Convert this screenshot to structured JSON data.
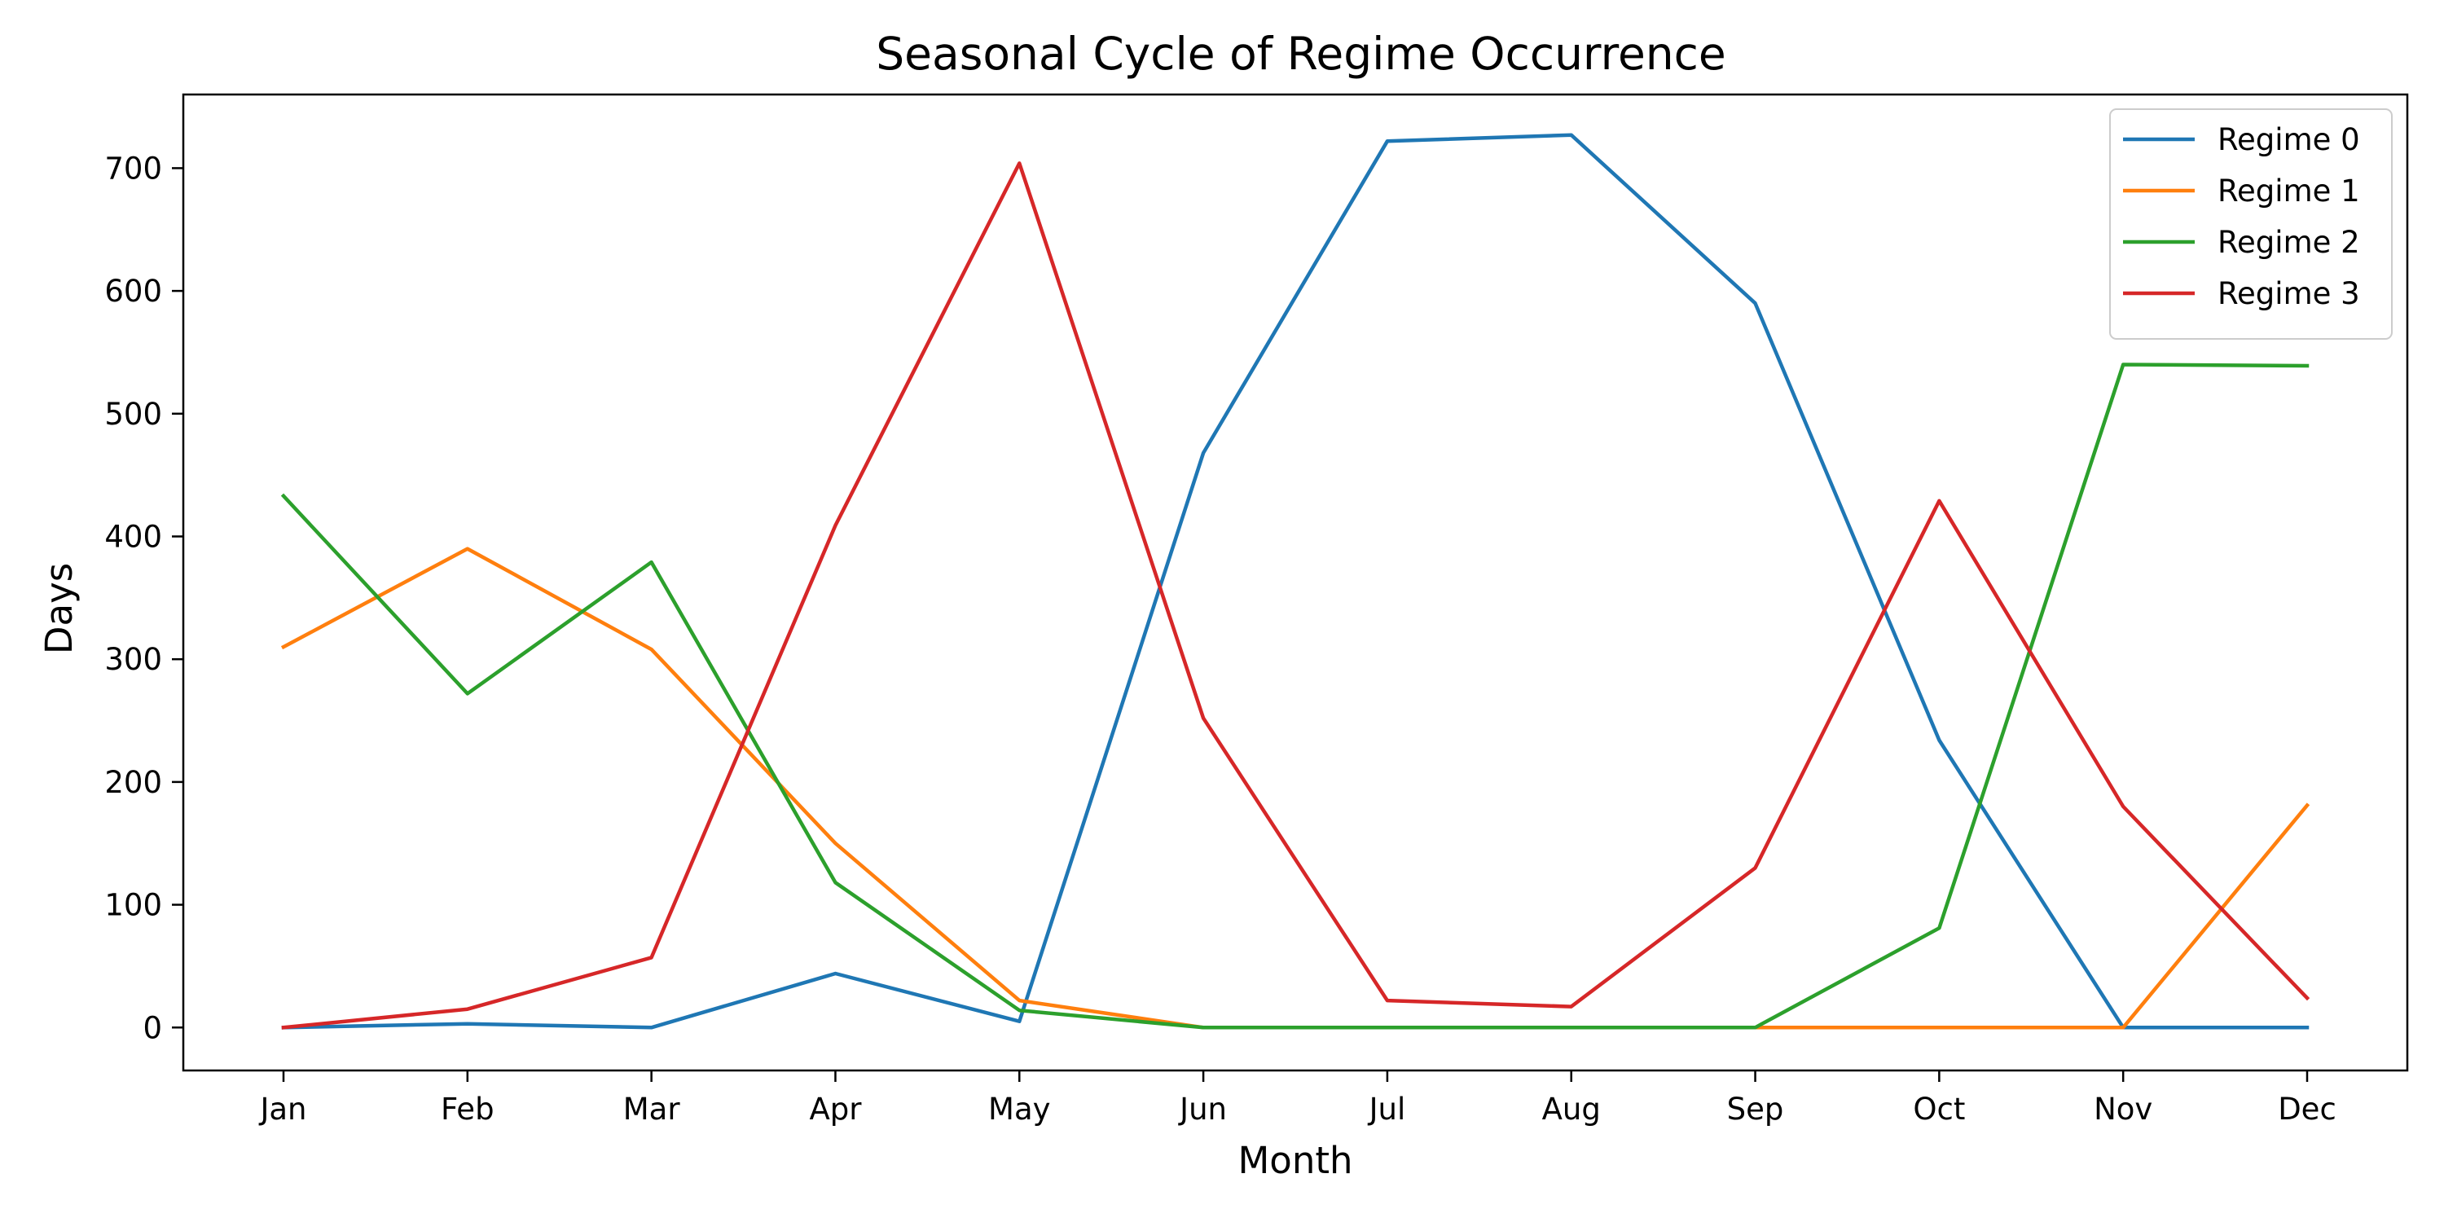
{
  "chart_data": {
    "type": "line",
    "title": "Seasonal Cycle of Regime Occurrence",
    "xlabel": "Month",
    "ylabel": "Days",
    "categories": [
      "Jan",
      "Feb",
      "Mar",
      "Apr",
      "May",
      "Jun",
      "Jul",
      "Aug",
      "Sep",
      "Oct",
      "Nov",
      "Dec"
    ],
    "ylim": [
      -35,
      760
    ],
    "yticks": [
      0,
      100,
      200,
      300,
      400,
      500,
      600,
      700
    ],
    "grid": false,
    "legend_position": "top-right",
    "series": [
      {
        "name": "Regime 0",
        "color": "#1f77b4",
        "values": [
          0,
          3,
          0,
          44,
          5,
          468,
          722,
          727,
          590,
          234,
          0,
          0
        ]
      },
      {
        "name": "Regime 1",
        "color": "#ff7f0e",
        "values": [
          310,
          390,
          308,
          150,
          22,
          0,
          0,
          0,
          0,
          0,
          0,
          181
        ]
      },
      {
        "name": "Regime 2",
        "color": "#2ca02c",
        "values": [
          433,
          272,
          379,
          118,
          14,
          0,
          0,
          0,
          0,
          81,
          540,
          539
        ]
      },
      {
        "name": "Regime 3",
        "color": "#d62728",
        "values": [
          0,
          15,
          57,
          409,
          704,
          252,
          22,
          17,
          130,
          429,
          180,
          24
        ]
      }
    ]
  }
}
